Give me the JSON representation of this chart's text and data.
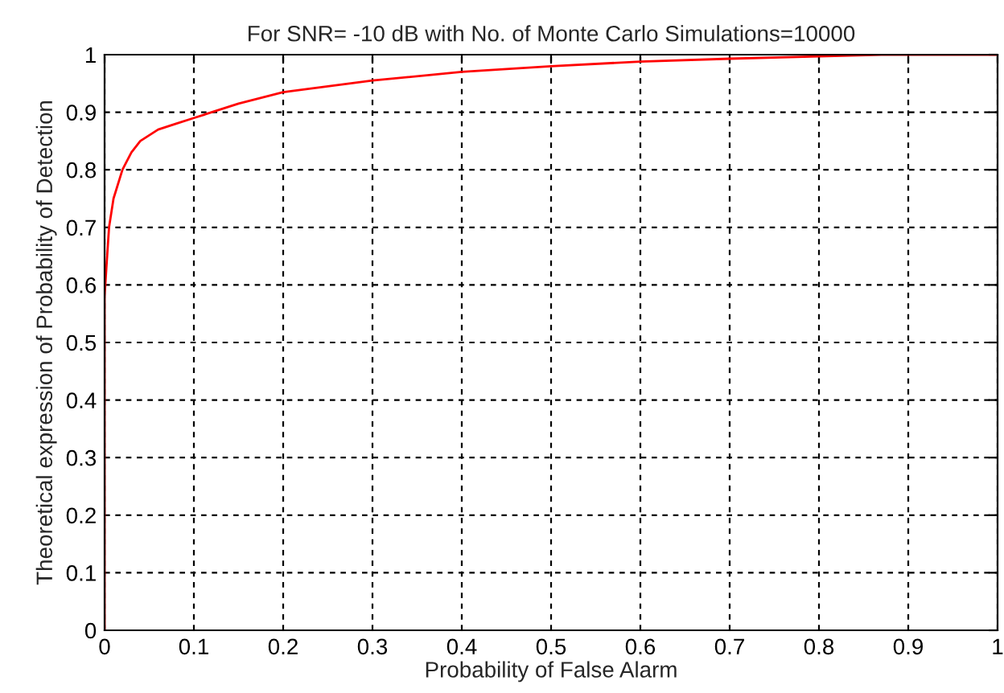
{
  "chart_data": {
    "type": "line",
    "title": "For SNR= -10 dB with No. of Monte Carlo Simulations=10000",
    "xlabel": "Probability of False Alarm",
    "ylabel": "Theoretical expression of Probability of Detection",
    "series": [
      {
        "color": "#ff0000",
        "x": [
          0,
          0,
          0.002,
          0.005,
          0.01,
          0.02,
          0.03,
          0.04,
          0.06,
          0.08,
          0.1,
          0.15,
          0.2,
          0.25,
          0.3,
          0.4,
          0.5,
          0.6,
          0.7,
          0.8,
          0.87,
          1
        ],
        "values": [
          0,
          0.58,
          0.63,
          0.7,
          0.75,
          0.8,
          0.83,
          0.85,
          0.87,
          0.88,
          0.89,
          0.915,
          0.935,
          0.945,
          0.955,
          0.97,
          0.98,
          0.988,
          0.993,
          0.997,
          1.0,
          1.0
        ]
      }
    ],
    "xlim": [
      0,
      1
    ],
    "ylim": [
      0,
      1
    ],
    "xticks": [
      0,
      0.1,
      0.2,
      0.3,
      0.4,
      0.5,
      0.6,
      0.7,
      0.8,
      0.9,
      1
    ],
    "yticks": [
      0,
      0.1,
      0.2,
      0.3,
      0.4,
      0.5,
      0.6,
      0.7,
      0.8,
      0.9,
      1
    ],
    "grid": true,
    "line_style": "solid",
    "marker": "none"
  }
}
